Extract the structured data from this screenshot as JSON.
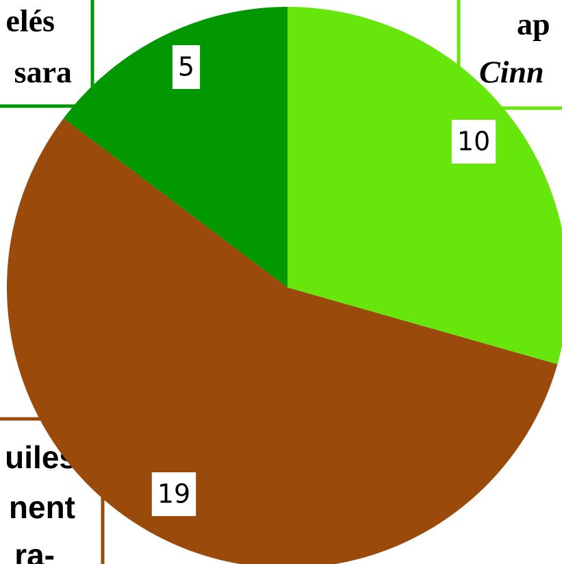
{
  "chart_data": {
    "type": "pie",
    "values": [
      10,
      19,
      5
    ],
    "colors": [
      "#66e60a",
      "#9a4a0a",
      "#029802"
    ],
    "start_angle": 0,
    "direction": "clockwise",
    "label_boxes": [
      {
        "lines": [
          "elés",
          "sara"
        ],
        "italic": [
          false,
          false
        ]
      },
      {
        "lines": [
          "ap",
          "Cinn"
        ],
        "italic": [
          false,
          true
        ]
      },
      {
        "lines": [
          "uiles",
          "nent",
          "ra-"
        ],
        "italic": [
          false,
          false,
          false
        ]
      }
    ]
  }
}
